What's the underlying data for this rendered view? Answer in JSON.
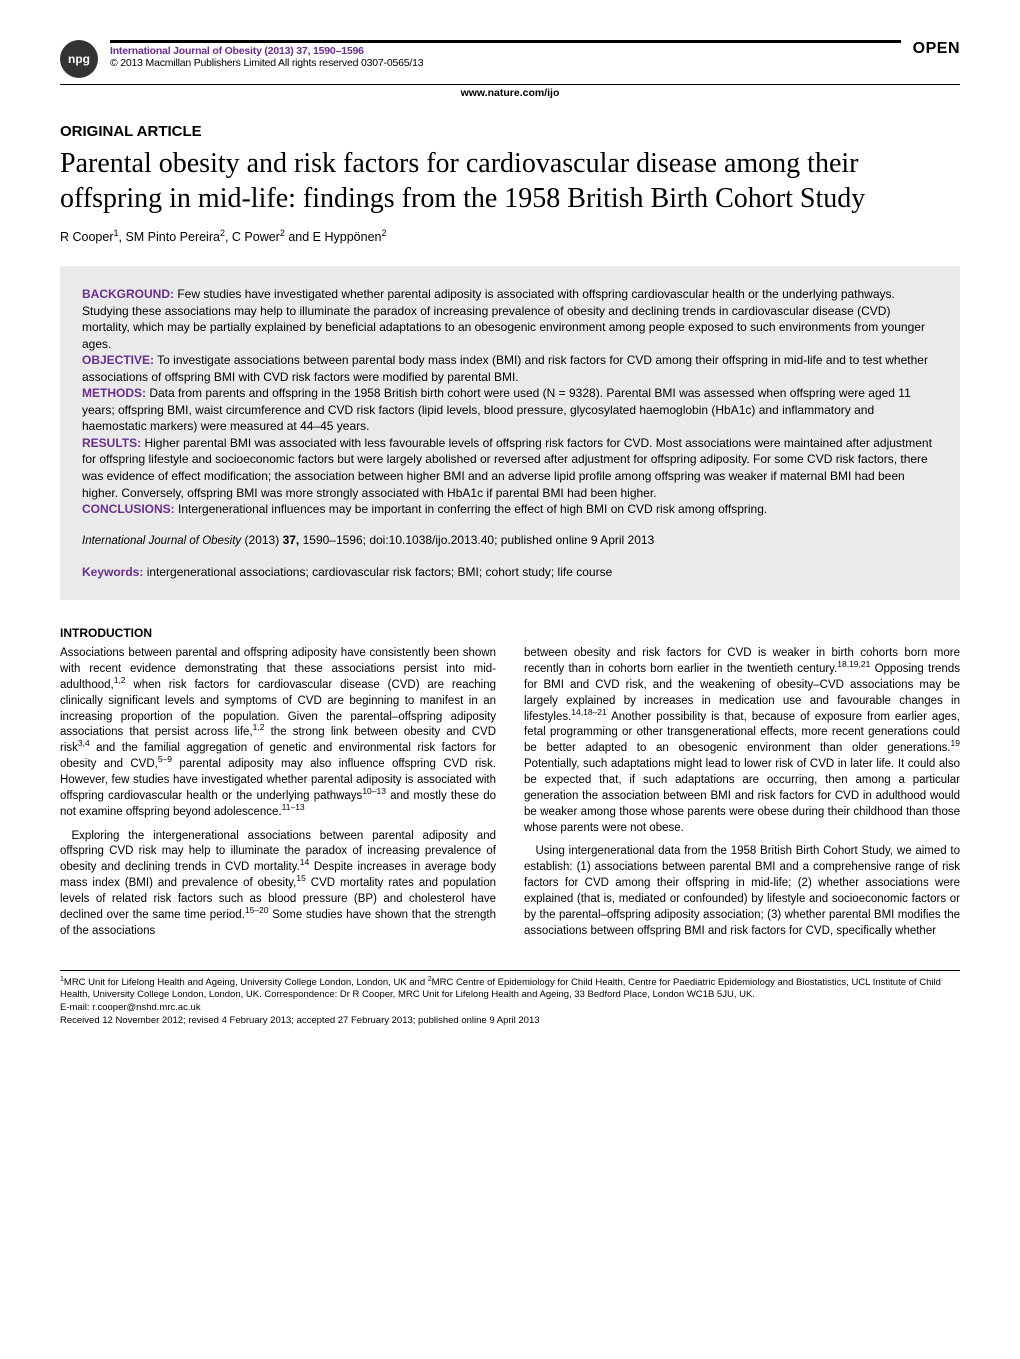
{
  "header": {
    "npg_badge": "npg",
    "journal_ref": "International Journal of Obesity (2013) 37, 1590–1596",
    "copyright": "© 2013 Macmillan Publishers Limited   All rights reserved 0307-0565/13",
    "open_label": "OPEN",
    "site": "www.nature.com/ijo",
    "accent_color": "#6a2e8f"
  },
  "article": {
    "type": "ORIGINAL ARTICLE",
    "title": "Parental obesity and risk factors for cardiovascular disease among their offspring in mid-life: findings from the 1958 British Birth Cohort Study",
    "authors_html": "R Cooper<sup>1</sup>, SM Pinto Pereira<sup>2</sup>, C Power<sup>2</sup> and E Hyppönen<sup>2</sup>"
  },
  "abstract": {
    "background_label": "BACKGROUND:",
    "background": "Few studies have investigated whether parental adiposity is associated with offspring cardiovascular health or the underlying pathways. Studying these associations may help to illuminate the paradox of increasing prevalence of obesity and declining trends in cardiovascular disease (CVD) mortality, which may be partially explained by beneficial adaptations to an obesogenic environment among people exposed to such environments from younger ages.",
    "objective_label": "OBJECTIVE:",
    "objective": "To investigate associations between parental body mass index (BMI) and risk factors for CVD among their offspring in mid-life and to test whether associations of offspring BMI with CVD risk factors were modified by parental BMI.",
    "methods_label": "METHODS:",
    "methods": "Data from parents and offspring in the 1958 British birth cohort were used (N = 9328). Parental BMI was assessed when offspring were aged 11 years; offspring BMI, waist circumference and CVD risk factors (lipid levels, blood pressure, glycosylated haemoglobin (HbA1c) and inflammatory and haemostatic markers) were measured at 44–45 years.",
    "results_label": "RESULTS:",
    "results": "Higher parental BMI was associated with less favourable levels of offspring risk factors for CVD. Most associations were maintained after adjustment for offspring lifestyle and socioeconomic factors but were largely abolished or reversed after adjustment for offspring adiposity. For some CVD risk factors, there was evidence of effect modification; the association between higher BMI and an adverse lipid profile among offspring was weaker if maternal BMI had been higher. Conversely, offspring BMI was more strongly associated with HbA1c if parental BMI had been higher.",
    "conclusions_label": "CONCLUSIONS:",
    "conclusions": "Intergenerational influences may be important in conferring the effect of high BMI on CVD risk among offspring.",
    "citation_journal": "International Journal of Obesity",
    "citation_year": "(2013)",
    "citation_volume": "37,",
    "citation_pages": "1590–1596; doi:10.1038/ijo.2013.40; published online 9 April 2013",
    "keywords_label": "Keywords:",
    "keywords": "intergenerational associations; cardiovascular risk factors; BMI; cohort study; life course"
  },
  "body": {
    "intro_head": "INTRODUCTION",
    "p1_html": "Associations between parental and offspring adiposity have consistently been shown with recent evidence demonstrating that these associations persist into mid-adulthood,<sup>1,2</sup> when risk factors for cardiovascular disease (CVD) are reaching clinically significant levels and symptoms of CVD are beginning to manifest in an increasing proportion of the population. Given the parental–offspring adiposity associations that persist across life,<sup>1,2</sup> the strong link between obesity and CVD risk<sup>3,4</sup> and the familial aggregation of genetic and environmental risk factors for obesity and CVD,<sup>5–9</sup> parental adiposity may also influence offspring CVD risk. However, few studies have investigated whether parental adiposity is associated with offspring cardiovascular health or the underlying pathways<sup>10–13</sup> and mostly these do not examine offspring beyond adolescence.<sup>11–13</sup>",
    "p2_html": "Exploring the intergenerational associations between parental adiposity and offspring CVD risk may help to illuminate the paradox of increasing prevalence of obesity and declining trends in CVD mortality.<sup>14</sup> Despite increases in average body mass index (BMI) and prevalence of obesity,<sup>15</sup> CVD mortality rates and population levels of related risk factors such as blood pressure (BP) and cholesterol have declined over the same time period.<sup>15–20</sup> Some studies have shown that the strength of the associations",
    "p3_html": "between obesity and risk factors for CVD is weaker in birth cohorts born more recently than in cohorts born earlier in the twentieth century.<sup>18,19,21</sup> Opposing trends for BMI and CVD risk, and the weakening of obesity–CVD associations may be largely explained by increases in medication use and favourable changes in lifestyles.<sup>14,18–21</sup> Another possibility is that, because of exposure from earlier ages, fetal programming or other transgenerational effects, more recent generations could be better adapted to an obesogenic environment than older generations.<sup>19</sup> Potentially, such adaptations might lead to lower risk of CVD in later life. It could also be expected that, if such adaptations are occurring, then among a particular generation the association between BMI and risk factors for CVD in adulthood would be weaker among those whose parents were obese during their childhood than those whose parents were not obese.",
    "p4_html": "Using intergenerational data from the 1958 British Birth Cohort Study, we aimed to establish: (1) associations between parental BMI and a comprehensive range of risk factors for CVD among their offspring in mid-life; (2) whether associations were explained (that is, mediated or confounded) by lifestyle and socioeconomic factors or by the parental–offspring adiposity association; (3) whether parental BMI modifies the associations between offspring BMI and risk factors for CVD, specifically whether"
  },
  "footer": {
    "affil_html": "<sup>1</sup>MRC Unit for Lifelong Health and Ageing, University College London, London, UK and <sup>2</sup>MRC Centre of Epidemiology for Child Health, Centre for Paediatric Epidemiology and Biostatistics, UCL Institute of Child Health, University College London, London, UK. Correspondence: Dr R Cooper, MRC Unit for Lifelong Health and Ageing, 33 Bedford Place, London WC1B 5JU, UK.",
    "email": "E-mail: r.cooper@nshd.mrc.ac.uk",
    "dates": "Received 12 November 2012; revised 4 February 2013; accepted 27 February 2013; published online 9 April 2013"
  }
}
